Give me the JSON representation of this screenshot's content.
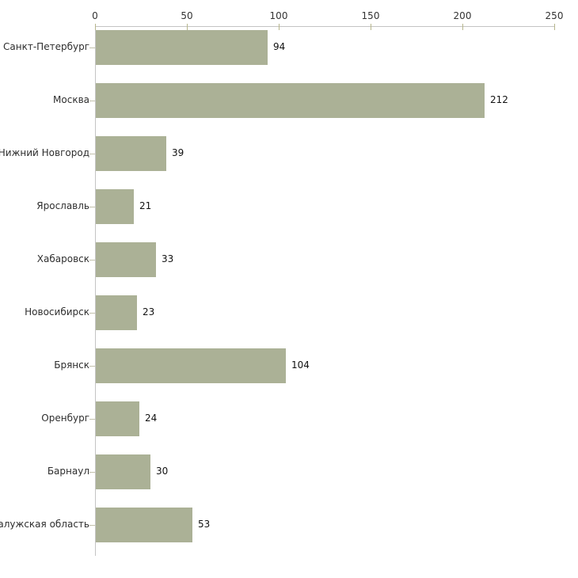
{
  "chart_data": {
    "type": "bar",
    "orientation": "horizontal",
    "title": "",
    "xlabel": "",
    "ylabel": "",
    "categories": [
      "Санкт-Петербург",
      "Москва",
      "Нижний Новгород",
      "Ярославль",
      "Хабаровск",
      "Новосибирск",
      "Брянск",
      "Оренбург",
      "Барнаул",
      "Калужская область"
    ],
    "values": [
      94,
      212,
      39,
      21,
      33,
      23,
      104,
      24,
      30,
      53
    ],
    "x_axis": {
      "position": "top",
      "min": 0,
      "max": 250,
      "ticks": [
        0,
        50,
        100,
        150,
        200,
        250
      ]
    },
    "grid": false,
    "legend": false,
    "colors": {
      "bar": "#abb196",
      "axis_line": "#c4c4c4",
      "x_tick": "#b7b68c",
      "y_tick": "#c2c1ab",
      "tick_label": "#333333",
      "category_label": "#2e2e2e",
      "value_label": "#111111",
      "background": "#ffffff"
    }
  }
}
